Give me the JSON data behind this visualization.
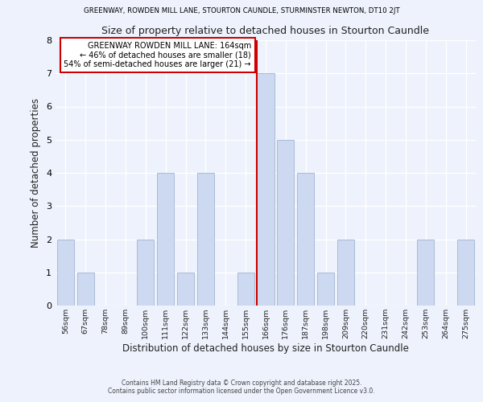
{
  "title_top": "GREENWAY, ROWDEN MILL LANE, STOURTON CAUNDLE, STURMINSTER NEWTON, DT10 2JT",
  "title_main": "Size of property relative to detached houses in Stourton Caundle",
  "xlabel": "Distribution of detached houses by size in Stourton Caundle",
  "ylabel": "Number of detached properties",
  "categories": [
    "56sqm",
    "67sqm",
    "78sqm",
    "89sqm",
    "100sqm",
    "111sqm",
    "122sqm",
    "133sqm",
    "144sqm",
    "155sqm",
    "166sqm",
    "176sqm",
    "187sqm",
    "198sqm",
    "209sqm",
    "220sqm",
    "231sqm",
    "242sqm",
    "253sqm",
    "264sqm",
    "275sqm"
  ],
  "values": [
    2,
    1,
    0,
    0,
    2,
    4,
    1,
    4,
    0,
    1,
    7,
    5,
    4,
    1,
    2,
    0,
    0,
    0,
    2,
    0,
    2
  ],
  "bar_color": "#ccd9f0",
  "bar_edge_color": "#aabbd8",
  "highlight_index": 10,
  "highlight_line_color": "#cc0000",
  "ylim": [
    0,
    8
  ],
  "yticks": [
    0,
    1,
    2,
    3,
    4,
    5,
    6,
    7,
    8
  ],
  "annotation_title": "GREENWAY ROWDEN MILL LANE: 164sqm",
  "annotation_line1": "← 46% of detached houses are smaller (18)",
  "annotation_line2": "54% of semi-detached houses are larger (21) →",
  "footer1": "Contains HM Land Registry data © Crown copyright and database right 2025.",
  "footer2": "Contains public sector information licensed under the Open Government Licence v3.0.",
  "background_color": "#edf2fc",
  "plot_bg_color": "#edf2fc",
  "grid_color": "#ffffff"
}
